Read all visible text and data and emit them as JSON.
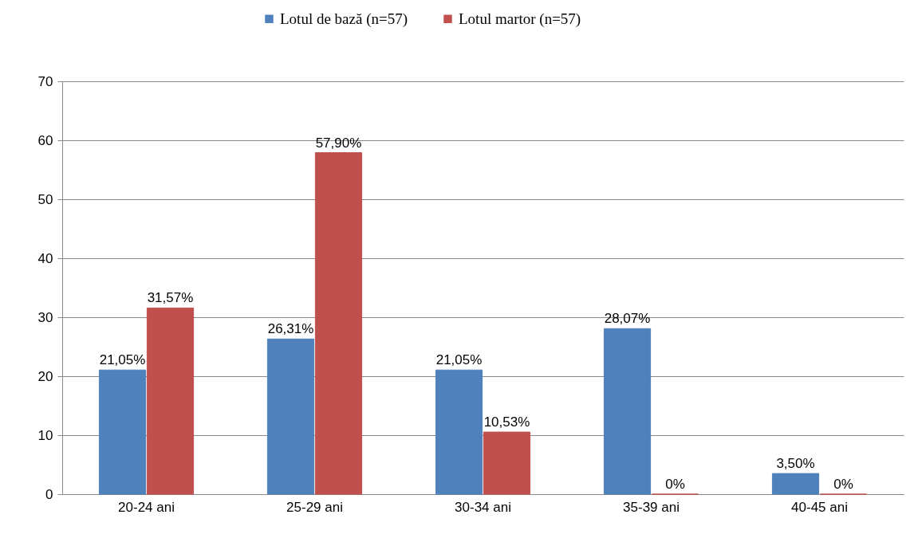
{
  "chart_data": {
    "type": "bar",
    "categories": [
      "20-24 ani",
      "25-29 ani",
      "30-34 ani",
      "35-39 ani",
      "40-45 ani"
    ],
    "series": [
      {
        "name": "Lotul de bază (n=57)",
        "color": "#4f81bd",
        "values": [
          21.05,
          26.31,
          21.05,
          28.07,
          3.5
        ],
        "value_labels": [
          "21,05%",
          "26,31%",
          "21,05%",
          "28,07%",
          "3,50%"
        ]
      },
      {
        "name": "Lotul martor (n=57)",
        "color": "#c0504d",
        "values": [
          31.57,
          57.9,
          10.53,
          0,
          0
        ],
        "value_labels": [
          "31,57%",
          "57,90%",
          "10,53%",
          "0%",
          "0%"
        ]
      }
    ],
    "ylim": [
      0,
      70
    ],
    "yticks": [
      0,
      10,
      20,
      30,
      40,
      50,
      60,
      70
    ],
    "grid": "y",
    "legend": "top"
  }
}
